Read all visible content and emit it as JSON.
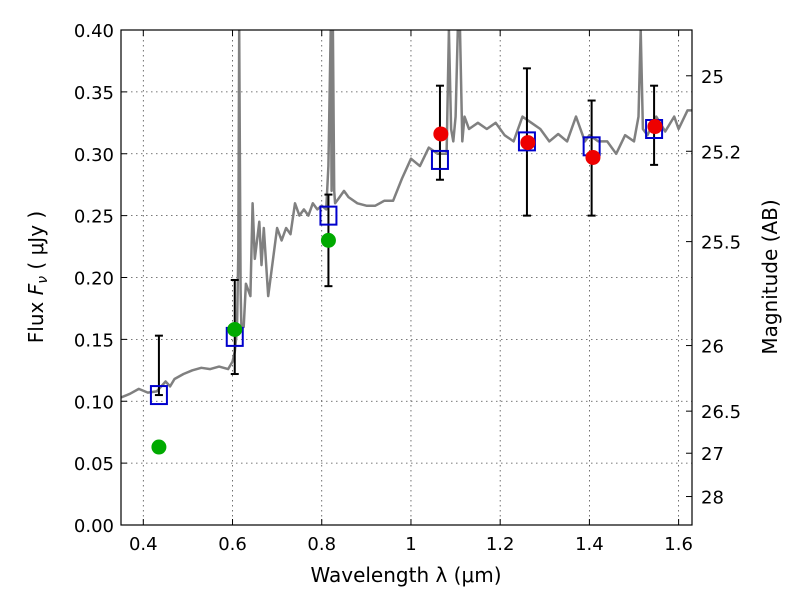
{
  "chart_data": {
    "type": "scatter",
    "title": "",
    "xlabel": "Wavelength  λ (μm)",
    "ylabel": "Flux  F_ν  ( μJy )",
    "ylabel_parts": {
      "prefix": "Flux  ",
      "var": "F",
      "sub": "ν",
      "suffix": "  ( μJy )"
    },
    "y2label": "Magnitude (AB)",
    "xlim": [
      0.35,
      1.63
    ],
    "ylim": [
      0.0,
      0.4
    ],
    "grid": true,
    "x_ticks": [
      0.4,
      0.6,
      0.8,
      1.0,
      1.2,
      1.4,
      1.6
    ],
    "x_tick_labels": [
      "0.4",
      "0.6",
      "0.8",
      "1",
      "1.2",
      "1.4",
      "1.6"
    ],
    "y_ticks": [
      0.0,
      0.05,
      0.1,
      0.15,
      0.2,
      0.25,
      0.3,
      0.35,
      0.4
    ],
    "y_tick_labels": [
      "0.00",
      "0.05",
      "0.10",
      "0.15",
      "0.20",
      "0.25",
      "0.30",
      "0.35",
      "0.40"
    ],
    "y2_ticks": [
      {
        "label": "25",
        "flux": 0.363
      },
      {
        "label": "25.2",
        "flux": 0.302
      },
      {
        "label": "25.5",
        "flux": 0.229
      },
      {
        "label": "26",
        "flux": 0.145
      },
      {
        "label": "26.5",
        "flux": 0.092
      },
      {
        "label": "27",
        "flux": 0.058
      },
      {
        "label": "28",
        "flux": 0.023
      }
    ],
    "colors": {
      "spectrum": "#808080",
      "model_points": "#0000cc",
      "green_points": "#00aa00",
      "red_points": "#ee0000",
      "errorbars": "#000000"
    },
    "series": [
      {
        "kind": "line",
        "x": [
          0.35,
          0.37,
          0.39,
          0.41,
          0.43,
          0.45,
          0.46,
          0.47,
          0.49,
          0.51,
          0.53,
          0.55,
          0.57,
          0.59,
          0.6,
          0.605,
          0.61,
          0.613,
          0.615,
          0.618,
          0.62,
          0.625,
          0.63,
          0.64,
          0.645,
          0.65,
          0.66,
          0.665,
          0.67,
          0.68,
          0.7,
          0.71,
          0.72,
          0.73,
          0.74,
          0.75,
          0.76,
          0.77,
          0.78,
          0.79,
          0.8,
          0.81,
          0.815,
          0.82,
          0.822,
          0.825,
          0.828,
          0.83,
          0.84,
          0.85,
          0.86,
          0.88,
          0.9,
          0.92,
          0.94,
          0.96,
          0.98,
          1.0,
          1.02,
          1.04,
          1.06,
          1.08,
          1.085,
          1.09,
          1.095,
          1.1,
          1.105,
          1.11,
          1.115,
          1.12,
          1.13,
          1.15,
          1.17,
          1.19,
          1.21,
          1.23,
          1.25,
          1.27,
          1.29,
          1.31,
          1.33,
          1.35,
          1.37,
          1.39,
          1.4,
          1.42,
          1.44,
          1.46,
          1.48,
          1.5,
          1.51,
          1.515,
          1.52,
          1.53,
          1.55,
          1.57,
          1.59,
          1.6,
          1.62,
          1.63
        ],
        "y": [
          0.103,
          0.106,
          0.11,
          0.107,
          0.108,
          0.116,
          0.112,
          0.118,
          0.122,
          0.125,
          0.127,
          0.126,
          0.128,
          0.126,
          0.132,
          0.14,
          0.158,
          0.22,
          0.4,
          0.19,
          0.16,
          0.16,
          0.195,
          0.185,
          0.26,
          0.215,
          0.245,
          0.21,
          0.24,
          0.185,
          0.24,
          0.23,
          0.24,
          0.235,
          0.26,
          0.25,
          0.255,
          0.25,
          0.26,
          0.255,
          0.258,
          0.255,
          0.29,
          0.4,
          0.27,
          0.4,
          0.27,
          0.26,
          0.265,
          0.27,
          0.265,
          0.26,
          0.258,
          0.258,
          0.262,
          0.262,
          0.28,
          0.296,
          0.29,
          0.305,
          0.3,
          0.3,
          0.4,
          0.32,
          0.31,
          0.33,
          0.4,
          0.4,
          0.31,
          0.33,
          0.32,
          0.325,
          0.32,
          0.325,
          0.315,
          0.31,
          0.33,
          0.325,
          0.32,
          0.31,
          0.316,
          0.31,
          0.33,
          0.31,
          0.315,
          0.31,
          0.31,
          0.3,
          0.315,
          0.31,
          0.33,
          0.4,
          0.32,
          0.315,
          0.33,
          0.318,
          0.33,
          0.32,
          0.335,
          0.335
        ]
      },
      {
        "kind": "errorbar-squares",
        "x": [
          0.435,
          0.605,
          0.815,
          1.065,
          1.26,
          1.405,
          1.545
        ],
        "y": [
          0.105,
          0.152,
          0.25,
          0.295,
          0.31,
          0.306,
          0.32
        ],
        "err_low": [
          0.105,
          0.122,
          0.193,
          0.279,
          0.25,
          0.25,
          0.291
        ],
        "err_high": [
          0.153,
          0.198,
          0.267,
          0.355,
          0.369,
          0.343,
          0.355
        ]
      },
      {
        "kind": "green-circles",
        "x": [
          0.435,
          0.605,
          0.815
        ],
        "y": [
          0.063,
          0.158,
          0.23
        ]
      },
      {
        "kind": "red-circles",
        "x": [
          1.067,
          1.262,
          1.408,
          1.547
        ],
        "y": [
          0.316,
          0.309,
          0.297,
          0.322
        ]
      }
    ]
  }
}
